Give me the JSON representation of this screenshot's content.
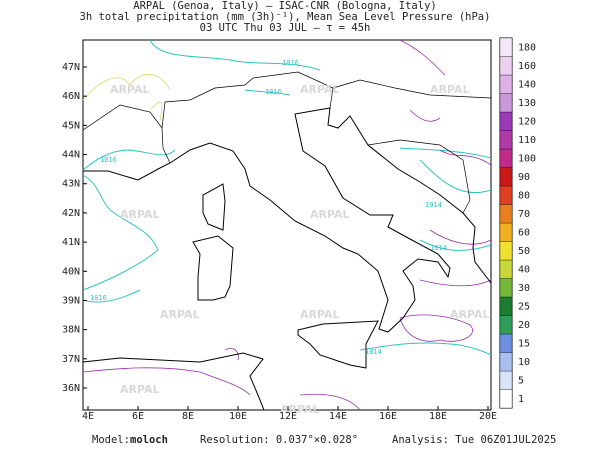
{
  "header": {
    "line1": "ARPAL (Genoa, Italy)  –  ISAC-CNR (Bologna, Italy)",
    "line2": "3h total precipitation (mm (3h)⁻¹), Mean Sea Level Pressure (hPa)",
    "line3": "03 UTC Thu 03 JUL  –  τ = 45h"
  },
  "map": {
    "lon_ticks": [
      {
        "value": 4,
        "label": "4E"
      },
      {
        "value": 6,
        "label": "6E"
      },
      {
        "value": 8,
        "label": "8E"
      },
      {
        "value": 10,
        "label": "10E"
      },
      {
        "value": 12,
        "label": "12E"
      },
      {
        "value": 14,
        "label": "14E"
      },
      {
        "value": 16,
        "label": "16E"
      },
      {
        "value": 18,
        "label": "18E"
      },
      {
        "value": 20,
        "label": "20E"
      }
    ],
    "lat_ticks": [
      {
        "value": 36,
        "label": "36N"
      },
      {
        "value": 37,
        "label": "37N"
      },
      {
        "value": 38,
        "label": "38N"
      },
      {
        "value": 39,
        "label": "39N"
      },
      {
        "value": 40,
        "label": "40N"
      },
      {
        "value": 41,
        "label": "41N"
      },
      {
        "value": 42,
        "label": "42N"
      },
      {
        "value": 43,
        "label": "43N"
      },
      {
        "value": 44,
        "label": "44N"
      },
      {
        "value": 45,
        "label": "45N"
      },
      {
        "value": 46,
        "label": "46N"
      },
      {
        "value": 47,
        "label": "47N"
      }
    ],
    "watermark": "ARPAL",
    "isobar_labels": [
      "1016",
      "1016",
      "1016",
      "1014",
      "1014",
      "1016",
      "1014"
    ]
  },
  "colorbar": {
    "levels": [
      1,
      5,
      10,
      15,
      20,
      25,
      30,
      40,
      50,
      60,
      70,
      80,
      90,
      100,
      110,
      120,
      130,
      140,
      160,
      180
    ],
    "colors": [
      "#ffffff",
      "#d8e4f8",
      "#a8bff0",
      "#6f8fe0",
      "#2e9e5a",
      "#1c7d2e",
      "#74b83a",
      "#c8d83a",
      "#f0e030",
      "#f0b020",
      "#e88020",
      "#e04020",
      "#c81818",
      "#c02a8a",
      "#b03aa8",
      "#9a3ab8",
      "#c898d8",
      "#ddb0e6",
      "#ecd0f0",
      "#f6e8f8"
    ]
  },
  "footer": {
    "model_label": "Model:",
    "model": "moloch",
    "resolution": "Resolution: 0.037°×0.028°",
    "analysis": "Analysis: Tue 06Z01JUL2025"
  }
}
